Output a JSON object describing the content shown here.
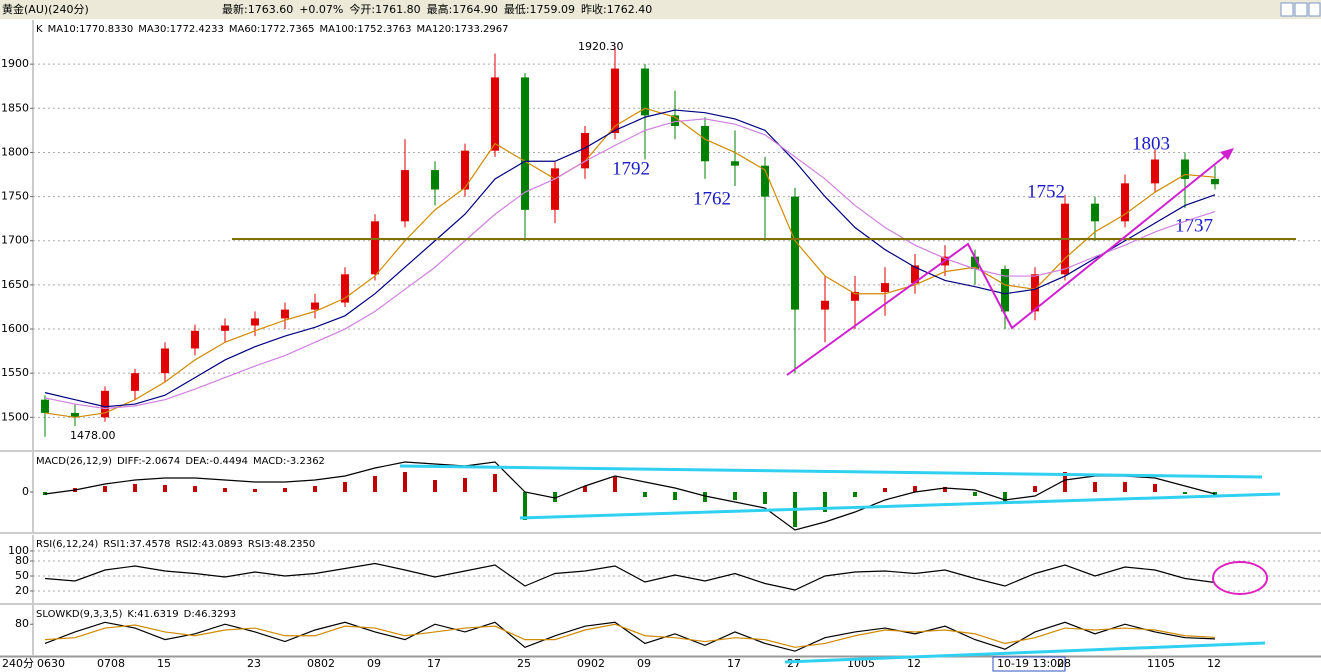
{
  "header": {
    "title": "黄金(AU)(240分)",
    "quote": [
      {
        "label": "最新:",
        "value": "1763.60",
        "color": "#c00000"
      },
      {
        "label": "",
        "value": "+0.07%",
        "color": "#c00000"
      },
      {
        "label": "今开:",
        "value": "1761.80",
        "color": "#c00000"
      },
      {
        "label": "最高:",
        "value": "1764.90",
        "color": "#c00000"
      },
      {
        "label": "最低:",
        "value": "1759.09",
        "color": "#008000"
      },
      {
        "label": "昨收:",
        "value": "1762.40",
        "color": "#000000"
      }
    ]
  },
  "chart_data": [
    {
      "type": "candlestick",
      "period_label": "240分",
      "categories": [
        "0630",
        null,
        "0708",
        null,
        "15",
        null,
        null,
        "23",
        null,
        "0802",
        null,
        "09",
        null,
        "17",
        null,
        null,
        "25",
        null,
        "0902",
        null,
        "09",
        null,
        null,
        "17",
        null,
        "27",
        null,
        "1005",
        null,
        "12",
        null,
        null,
        "10-19 13:00",
        null,
        "28",
        null,
        null,
        "1105",
        null,
        "12"
      ],
      "open": [
        1520,
        1505,
        1500,
        1530,
        1550,
        1578,
        1598,
        1604,
        1612,
        1622,
        1630,
        1662,
        1722,
        1780,
        1758,
        1802,
        1885,
        1735,
        1782,
        1822,
        1895,
        1842,
        1830,
        1790,
        1785,
        1750,
        1622,
        1632,
        1642,
        1652,
        1672,
        1682,
        1668,
        1620,
        1662,
        1742,
        1722,
        1765,
        1792,
        1770
      ],
      "high": [
        1525,
        1515,
        1535,
        1555,
        1585,
        1605,
        1612,
        1620,
        1630,
        1640,
        1670,
        1730,
        1815,
        1790,
        1810,
        1912,
        1890,
        1790,
        1830,
        1920.3,
        1900,
        1870,
        1840,
        1825,
        1795,
        1760,
        1660,
        1660,
        1670,
        1685,
        1695,
        1690,
        1672,
        1670,
        1752,
        1750,
        1775,
        1803,
        1800,
        1785
      ],
      "low": [
        1478,
        1490,
        1495,
        1520,
        1540,
        1570,
        1585,
        1592,
        1600,
        1612,
        1625,
        1655,
        1715,
        1740,
        1750,
        1795,
        1700,
        1720,
        1770,
        1815,
        1792,
        1815,
        1770,
        1762,
        1700,
        1550,
        1585,
        1600,
        1615,
        1640,
        1660,
        1650,
        1600,
        1610,
        1655,
        1700,
        1715,
        1755,
        1737,
        1758
      ],
      "close": [
        1505,
        1500,
        1530,
        1550,
        1578,
        1598,
        1604,
        1612,
        1622,
        1630,
        1662,
        1722,
        1780,
        1758,
        1802,
        1885,
        1735,
        1782,
        1822,
        1895,
        1842,
        1830,
        1790,
        1785,
        1750,
        1622,
        1632,
        1642,
        1652,
        1672,
        1682,
        1668,
        1620,
        1662,
        1742,
        1722,
        1765,
        1792,
        1770,
        1764
      ],
      "up_color": "#e00000",
      "down_color": "#008000",
      "series": [
        {
          "color": "#d08a00",
          "values": [
            1505,
            1500,
            1505,
            1520,
            1540,
            1565,
            1585,
            1598,
            1610,
            1620,
            1635,
            1660,
            1700,
            1735,
            1760,
            1810,
            1790,
            1770,
            1790,
            1830,
            1850,
            1840,
            1815,
            1800,
            1780,
            1700,
            1660,
            1640,
            1640,
            1650,
            1665,
            1670,
            1650,
            1645,
            1680,
            1710,
            1730,
            1755,
            1775,
            1772
          ]
        },
        {
          "color": "#000080",
          "values": [
            1528,
            1520,
            1512,
            1515,
            1525,
            1545,
            1565,
            1580,
            1592,
            1602,
            1615,
            1640,
            1670,
            1700,
            1730,
            1770,
            1790,
            1790,
            1805,
            1825,
            1840,
            1848,
            1845,
            1838,
            1825,
            1790,
            1750,
            1715,
            1690,
            1670,
            1655,
            1648,
            1640,
            1645,
            1660,
            1680,
            1700,
            1720,
            1740,
            1752
          ]
        },
        {
          "color": "#d080e0",
          "values": [
            1522,
            1515,
            1510,
            1513,
            1520,
            1532,
            1545,
            1558,
            1570,
            1585,
            1600,
            1620,
            1645,
            1670,
            1700,
            1730,
            1755,
            1770,
            1790,
            1808,
            1825,
            1835,
            1838,
            1832,
            1820,
            1795,
            1770,
            1740,
            1715,
            1695,
            1680,
            1668,
            1660,
            1660,
            1668,
            1682,
            1695,
            1710,
            1722,
            1733
          ]
        }
      ],
      "legend": [
        {
          "text": "K",
          "color": "#000000"
        },
        {
          "text": "MA10:1770.8330",
          "color": "#000080"
        },
        {
          "text": "MA30:1772.4233",
          "color": "#d08a00"
        },
        {
          "text": "MA60:1772.7365",
          "color": "#000080"
        },
        {
          "text": "MA100:1752.3763",
          "color": "#000080"
        },
        {
          "text": "MA120:1733.2967",
          "color": "#d080e0"
        }
      ],
      "annotations": [
        "1920.30",
        "1478.00",
        "1792",
        "1762",
        "1752",
        "1803",
        "1737"
      ],
      "ylim": [
        1463,
        1950
      ],
      "yticks": [
        1500,
        1550,
        1600,
        1650,
        1700,
        1750,
        1800,
        1850,
        1900
      ],
      "grid": true
    },
    {
      "type": "macd",
      "values": [
        -3,
        4,
        6,
        8,
        7,
        6,
        4,
        3,
        4,
        6,
        10,
        16,
        20,
        12,
        14,
        18,
        -28,
        -10,
        6,
        15,
        -5,
        -8,
        -10,
        -8,
        -12,
        -35,
        -20,
        -5,
        4,
        6,
        5,
        -4,
        -12,
        6,
        20,
        10,
        10,
        8,
        -2,
        -3
      ],
      "up_color": "#c00000",
      "down_color": "#008000",
      "series": [
        {
          "color": "#000000",
          "values": [
            -2,
            2,
            8,
            12,
            14,
            14,
            12,
            10,
            10,
            12,
            16,
            24,
            30,
            28,
            26,
            30,
            0,
            -6,
            6,
            16,
            10,
            4,
            -4,
            -10,
            -16,
            -38,
            -30,
            -20,
            -8,
            0,
            4,
            2,
            -8,
            -4,
            12,
            16,
            16,
            14,
            6,
            -2
          ]
        }
      ],
      "legend": [
        {
          "text": "MACD(26,12,9)",
          "color": "#000000"
        },
        {
          "text": "DIFF:-2.0674",
          "color": "#000000"
        },
        {
          "text": "DEA:-0.4494",
          "color": "#d08a00"
        },
        {
          "text": "MACD:-3.2362",
          "color": "#000000"
        }
      ],
      "ylim": [
        -40,
        40
      ],
      "yticks": [
        0
      ]
    },
    {
      "type": "line",
      "series": [
        {
          "color": "#000000",
          "values": [
            45,
            40,
            62,
            70,
            60,
            55,
            48,
            58,
            50,
            55,
            65,
            75,
            62,
            48,
            60,
            72,
            30,
            55,
            60,
            70,
            38,
            52,
            40,
            55,
            35,
            22,
            50,
            58,
            60,
            55,
            62,
            45,
            30,
            55,
            72,
            50,
            68,
            62,
            45,
            37
          ]
        }
      ],
      "legend": [
        {
          "text": "RSI(6,12,24)",
          "color": "#000000"
        },
        {
          "text": "RSI1:37.4578",
          "color": "#000000"
        },
        {
          "text": "RSI2:43.0893",
          "color": "#d08a00"
        },
        {
          "text": "RSI3:48.2350",
          "color": "#000080"
        }
      ],
      "ylim": [
        -4,
        132
      ],
      "yticks": [
        100,
        80,
        50,
        20
      ],
      "grid": true
    },
    {
      "type": "line",
      "series": [
        {
          "color": "#000000",
          "values": [
            30,
            60,
            85,
            70,
            40,
            55,
            80,
            60,
            35,
            65,
            85,
            60,
            40,
            80,
            60,
            85,
            20,
            50,
            75,
            85,
            30,
            55,
            25,
            60,
            30,
            10,
            45,
            60,
            70,
            55,
            75,
            40,
            15,
            60,
            85,
            55,
            80,
            60,
            45,
            42
          ]
        },
        {
          "color": "#d08a00",
          "values": [
            40,
            45,
            70,
            78,
            60,
            50,
            65,
            70,
            50,
            50,
            75,
            70,
            50,
            60,
            70,
            75,
            40,
            40,
            65,
            80,
            50,
            45,
            35,
            45,
            40,
            20,
            30,
            50,
            65,
            60,
            65,
            55,
            30,
            45,
            70,
            65,
            70,
            65,
            50,
            46
          ]
        }
      ],
      "legend": [
        {
          "text": "SLOWKD(9,3,3,5)",
          "color": "#000000"
        },
        {
          "text": "K:41.6319",
          "color": "#000000"
        },
        {
          "text": "D:46.3293",
          "color": "#d08a00"
        }
      ],
      "ylim": [
        0,
        130
      ],
      "yticks": [
        80
      ]
    }
  ]
}
